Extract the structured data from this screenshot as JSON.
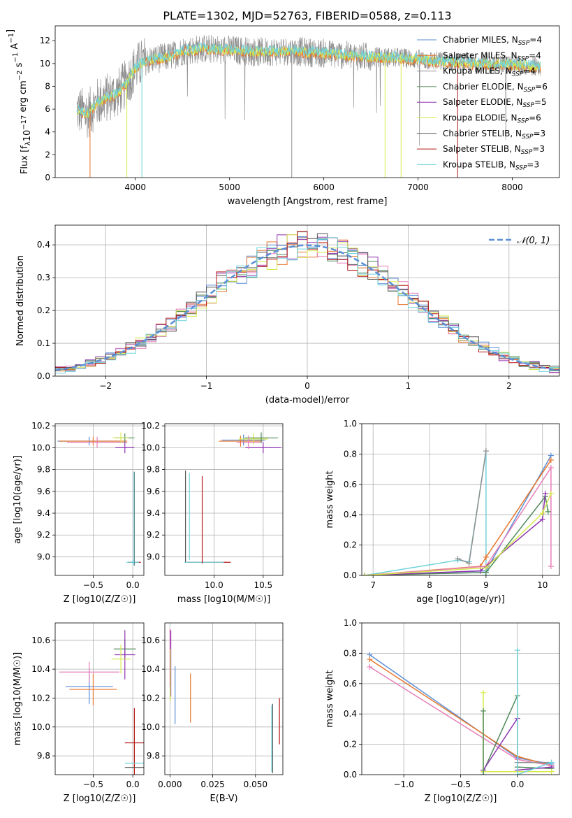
{
  "figure": {
    "title": "PLATE=1302, MJD=52763, FIBERID=0588, z=0.113"
  },
  "colors": {
    "Chabrier MILES": "#5b8fd6",
    "Salpeter MILES": "#e8762c",
    "Kroupa MILES": "#8f8f8f",
    "Chabrier ELODIE": "#4f8a5a",
    "Salpeter ELODIE": "#8e35b0",
    "Kroupa ELODIE": "#d6ea4a",
    "Chabrier STELIB": "#555555",
    "Salpeter STELIB": "#b51616",
    "Kroupa STELIB": "#6fd3db",
    "Kroupa MILES (hist)": "#e87eb8",
    "normal": "#5b8fd6"
  },
  "chart_data": [
    {
      "type": "line",
      "name": "spectrum",
      "xlabel": "wavelength [Angstrom, rest frame]",
      "ylabel": "Flux [f_λ 10^-17 erg cm^-2 s^-1 A^-1]",
      "xlim": [
        3150,
        8500
      ],
      "ylim": [
        0,
        13.3
      ],
      "xticks": [
        "4000",
        "5000",
        "6000",
        "7000",
        "8000"
      ],
      "yticks": [
        "0",
        "2",
        "4",
        "6",
        "8",
        "10",
        "12"
      ],
      "continuum": {
        "x": [
          3380,
          3500,
          3600,
          3700,
          3800,
          3900,
          4000,
          4100,
          4200,
          4300,
          4400,
          4500,
          4700,
          5000,
          5300,
          5600,
          6000,
          6400,
          6800,
          7200,
          7600,
          8000,
          8300
        ],
        "y": [
          5.9,
          5.6,
          6.6,
          7.0,
          7.3,
          8.2,
          9.6,
          10.2,
          10.4,
          10.5,
          10.7,
          11.1,
          11.3,
          11.2,
          11.0,
          11.1,
          10.9,
          10.6,
          10.5,
          10.2,
          10.0,
          9.9,
          9.7
        ]
      },
      "legend": {
        "position": "top-right",
        "entries": [
          {
            "label": "Chabrier MILES, N",
            "sub": "SSP",
            "tail": "=4"
          },
          {
            "label": "Salpeter MILES, N",
            "sub": "SSP",
            "tail": "=4"
          },
          {
            "label": "Kroupa MILES, N",
            "sub": "SSP",
            "tail": "=4"
          },
          {
            "label": "Chabrier ELODIE, N",
            "sub": "SSP",
            "tail": "=6"
          },
          {
            "label": "Salpeter ELODIE, N",
            "sub": "SSP",
            "tail": "=5"
          },
          {
            "label": "Kroupa ELODIE, N",
            "sub": "SSP",
            "tail": "=6"
          },
          {
            "label": "Chabrier STELIB, N",
            "sub": "SSP",
            "tail": "=3"
          },
          {
            "label": "Salpeter STELIB, N",
            "sub": "SSP",
            "tail": "=3"
          },
          {
            "label": "Kroupa STELIB, N",
            "sub": "SSP",
            "tail": "=3"
          }
        ],
        "colors": [
          "#5b8fd6",
          "#e8762c",
          "#8f8f8f",
          "#4f8a5a",
          "#8e35b0",
          "#d6ea4a",
          "#555555",
          "#b51616",
          "#6fd3db"
        ]
      }
    },
    {
      "type": "line",
      "name": "residual-histogram",
      "xlabel": "(data-model)/error",
      "ylabel": "Normed distribution",
      "xlim": [
        -2.5,
        2.5
      ],
      "ylim": [
        0,
        0.46
      ],
      "xticks": [
        "−2",
        "−1",
        "0",
        "1",
        "2"
      ],
      "yticks": [
        "0.0",
        "0.1",
        "0.2",
        "0.3",
        "0.4"
      ],
      "legend": {
        "position": "top-right",
        "label": "𝒩(0, 1)"
      },
      "series_colors": [
        "#5b8fd6",
        "#e8762c",
        "#e87eb8",
        "#4f8a5a",
        "#8e35b0",
        "#d6ea4a",
        "#555555",
        "#b51616",
        "#6fd3db"
      ]
    },
    {
      "type": "scatter",
      "name": "age-vs-Z",
      "xlabel": "Z [log10(Z/Z☉)]",
      "ylabel": "age [log10(age/yr)]",
      "xlim": [
        -0.98,
        0.14
      ],
      "ylim": [
        8.83,
        10.22
      ],
      "xticks": [
        "−0.5",
        "0.0"
      ],
      "yticks": [
        "9.0",
        "9.2",
        "9.4",
        "9.6",
        "9.8",
        "10.0",
        "10.2"
      ],
      "points": [
        {
          "x": -0.55,
          "y": 10.06,
          "xerr": 0.4,
          "yerr": 0.04,
          "c": "#5b8fd6"
        },
        {
          "x": -0.5,
          "y": 10.06,
          "xerr": 0.43,
          "yerr": 0.04,
          "c": "#e8762c"
        },
        {
          "x": -0.45,
          "y": 10.05,
          "xerr": 0.38,
          "yerr": 0.05,
          "c": "#e87eb8"
        },
        {
          "x": -0.1,
          "y": 10.09,
          "xerr": 0.12,
          "yerr": 0.04,
          "c": "#4f8a5a"
        },
        {
          "x": -0.1,
          "y": 10.0,
          "xerr": 0.12,
          "yerr": 0.05,
          "c": "#8e35b0"
        },
        {
          "x": -0.15,
          "y": 10.09,
          "xerr": 0.1,
          "yerr": 0.05,
          "c": "#d6ea4a"
        },
        {
          "x": 0.02,
          "y": 8.95,
          "xerr": 0.08,
          "yerr": 0.02,
          "c": "#555555"
        },
        {
          "x": 0.02,
          "y": 8.95,
          "xerr": 0.08,
          "yerr": 0.02,
          "c": "#b51616"
        },
        {
          "x": 0.0,
          "y": 8.95,
          "xerr": 0.08,
          "yerr": 0.02,
          "c": "#6fd3db"
        },
        {
          "x": 0.02,
          "y": 9.35,
          "xerr": 0.0,
          "yerr": 0.43,
          "c": "#555555"
        },
        {
          "x": 0.015,
          "y": 9.35,
          "xerr": 0.0,
          "yerr": 0.43,
          "c": "#6fd3db"
        }
      ]
    },
    {
      "type": "scatter",
      "name": "age-vs-mass",
      "xlabel": "mass [log10(M/M☉)]",
      "ylabel": "",
      "xlim": [
        9.5,
        10.7
      ],
      "ylim": [
        8.83,
        10.22
      ],
      "xticks": [
        "10.0",
        "10.5"
      ],
      "yticks": [
        "9.0",
        "9.2",
        "9.4",
        "9.6",
        "9.8",
        "10.0",
        "10.2"
      ],
      "points": [
        {
          "x": 10.3,
          "y": 10.07,
          "xerr": 0.22,
          "yerr": 0.05,
          "c": "#5b8fd6"
        },
        {
          "x": 10.27,
          "y": 10.06,
          "xerr": 0.22,
          "yerr": 0.05,
          "c": "#e8762c"
        },
        {
          "x": 10.4,
          "y": 10.08,
          "xerr": 0.15,
          "yerr": 0.05,
          "c": "#d6ea4a"
        },
        {
          "x": 10.48,
          "y": 10.09,
          "xerr": 0.17,
          "yerr": 0.05,
          "c": "#4f8a5a"
        },
        {
          "x": 10.5,
          "y": 10.0,
          "xerr": 0.18,
          "yerr": 0.05,
          "c": "#8e35b0"
        },
        {
          "x": 10.35,
          "y": 10.05,
          "xerr": 0.12,
          "yerr": 0.06,
          "c": "#e87eb8"
        },
        {
          "x": 9.95,
          "y": 8.95,
          "xerr": 0.22,
          "yerr": 0.0,
          "c": "#b51616"
        },
        {
          "x": 9.9,
          "y": 8.95,
          "xerr": 0.2,
          "yerr": 0.0,
          "c": "#6fd3db"
        },
        {
          "x": 9.71,
          "y": 9.37,
          "xerr": 0.0,
          "yerr": 0.42,
          "c": "#555555"
        },
        {
          "x": 9.75,
          "y": 9.37,
          "xerr": 0.0,
          "yerr": 0.4,
          "c": "#6fd3db"
        },
        {
          "x": 9.88,
          "y": 9.34,
          "xerr": 0.0,
          "yerr": 0.4,
          "c": "#b51616"
        }
      ]
    },
    {
      "type": "line",
      "name": "mass-weight-vs-age",
      "xlabel": "age [log10(age/yr)]",
      "ylabel": "mass weight",
      "xlim": [
        6.8,
        10.3
      ],
      "ylim": [
        0,
        1.0
      ],
      "xticks": [
        "7",
        "8",
        "9",
        "10"
      ],
      "yticks": [
        "0.0",
        "0.2",
        "0.4",
        "0.6",
        "0.8",
        "1.0"
      ],
      "series": [
        {
          "c": "#6fd3db",
          "x": [
            6.85,
            8.5,
            8.7,
            9.0,
            9.0
          ],
          "y": [
            0.0,
            0.1,
            0.09,
            0.82,
            0.0
          ]
        },
        {
          "c": "#8f8f8f",
          "x": [
            8.5,
            8.7,
            9.0
          ],
          "y": [
            0.11,
            0.08,
            0.82
          ]
        },
        {
          "c": "#5b8fd6",
          "x": [
            6.85,
            9.0,
            10.15
          ],
          "y": [
            0.0,
            0.03,
            0.79
          ]
        },
        {
          "c": "#e8762c",
          "x": [
            6.85,
            8.9,
            9.0,
            10.15
          ],
          "y": [
            0.0,
            0.06,
            0.12,
            0.76
          ]
        },
        {
          "c": "#e87eb8",
          "x": [
            6.85,
            9.0,
            10.15,
            10.15
          ],
          "y": [
            0.0,
            0.06,
            0.71,
            0.06
          ]
        },
        {
          "c": "#4f8a5a",
          "x": [
            6.85,
            9.0,
            10.05,
            10.1
          ],
          "y": [
            0.0,
            0.02,
            0.52,
            0.42
          ]
        },
        {
          "c": "#8e35b0",
          "x": [
            6.85,
            8.9,
            10.0,
            10.05
          ],
          "y": [
            0.0,
            0.03,
            0.37,
            0.54
          ]
        },
        {
          "c": "#d6ea4a",
          "x": [
            6.85,
            9.0,
            10.0,
            10.15
          ],
          "y": [
            0.0,
            0.05,
            0.41,
            0.54
          ]
        }
      ]
    },
    {
      "type": "scatter",
      "name": "mass-vs-Z",
      "xlabel": "Z [log10(Z/Z☉)]",
      "ylabel": "mass [log10(M/M☉)]",
      "xlim": [
        -0.98,
        0.14
      ],
      "ylim": [
        9.67,
        10.72
      ],
      "xticks": [
        "−0.5",
        "0.0"
      ],
      "yticks": [
        "9.8",
        "10.0",
        "10.2",
        "10.4",
        "10.6"
      ],
      "points": [
        {
          "x": -0.55,
          "y": 10.28,
          "xerr": 0.3,
          "yerr": 0.12,
          "c": "#5b8fd6"
        },
        {
          "x": -0.5,
          "y": 10.26,
          "xerr": 0.3,
          "yerr": 0.11,
          "c": "#e8762c"
        },
        {
          "x": -0.55,
          "y": 10.38,
          "xerr": 0.38,
          "yerr": 0.07,
          "c": "#e87eb8"
        },
        {
          "x": -0.1,
          "y": 10.54,
          "xerr": 0.14,
          "yerr": 0.07,
          "c": "#4f8a5a"
        },
        {
          "x": -0.1,
          "y": 10.5,
          "xerr": 0.13,
          "yerr": 0.17,
          "c": "#8e35b0"
        },
        {
          "x": -0.15,
          "y": 10.47,
          "xerr": 0.12,
          "yerr": 0.1,
          "c": "#d6ea4a"
        },
        {
          "x": 0.02,
          "y": 9.89,
          "xerr": 0.12,
          "yerr": 0.24,
          "c": "#b51616"
        },
        {
          "x": 0.02,
          "y": 9.75,
          "xerr": 0.12,
          "yerr": 0.0,
          "c": "#6fd3db"
        },
        {
          "x": 0.02,
          "y": 9.72,
          "xerr": 0.12,
          "yerr": 0.0,
          "c": "#555555"
        }
      ]
    },
    {
      "type": "scatter",
      "name": "mass-vs-EBV",
      "xlabel": "E(B-V)",
      "ylabel": "",
      "xlim": [
        -0.003,
        0.066
      ],
      "ylim": [
        9.67,
        10.72
      ],
      "xticks": [
        "0.000",
        "0.025",
        "0.050"
      ],
      "yticks": [
        "9.8",
        "10.0",
        "10.2",
        "10.4",
        "10.6"
      ],
      "points": [
        {
          "x": 0.0,
          "y": 10.48,
          "yerr": 0.2,
          "c": "#e87eb8"
        },
        {
          "x": 0.0005,
          "y": 10.44,
          "yerr": 0.23,
          "c": "#8e35b0"
        },
        {
          "x": 0.0002,
          "y": 10.36,
          "yerr": 0.18,
          "c": "#d6ea4a"
        },
        {
          "x": 0.003,
          "y": 10.22,
          "yerr": 0.2,
          "c": "#5b8fd6"
        },
        {
          "x": 0.012,
          "y": 10.2,
          "yerr": 0.17,
          "c": "#e8762c"
        },
        {
          "x": 0.06,
          "y": 9.92,
          "yerr": 0.24,
          "c": "#555555"
        },
        {
          "x": 0.0595,
          "y": 9.92,
          "yerr": 0.23,
          "c": "#6fd3db"
        },
        {
          "x": 0.064,
          "y": 10.04,
          "yerr": 0.16,
          "c": "#b51616"
        }
      ]
    },
    {
      "type": "line",
      "name": "mass-weight-vs-Z",
      "xlabel": "Z [log10(Z/Z☉)]",
      "ylabel": "mass weight",
      "xlim": [
        -1.37,
        0.37
      ],
      "ylim": [
        0,
        1.0
      ],
      "xticks": [
        "−1.0",
        "−0.5",
        "0.0"
      ],
      "yticks": [
        "0.0",
        "0.2",
        "0.4",
        "0.6",
        "0.8",
        "1.0"
      ],
      "series": [
        {
          "c": "#5b8fd6",
          "x": [
            -1.3,
            0.0,
            0.3
          ],
          "y": [
            0.79,
            0.11,
            0.07
          ]
        },
        {
          "c": "#e8762c",
          "x": [
            -1.3,
            0.0,
            0.3
          ],
          "y": [
            0.76,
            0.12,
            0.06
          ]
        },
        {
          "c": "#e87eb8",
          "x": [
            -1.3,
            0.0,
            0.3
          ],
          "y": [
            0.71,
            0.1,
            0.06
          ]
        },
        {
          "c": "#4f8a5a",
          "x": [
            -0.3,
            0.0,
            0.0,
            0.3
          ],
          "y": [
            0.02,
            0.52,
            0.05,
            0.04
          ]
        },
        {
          "c": "#8e35b0",
          "x": [
            -0.3,
            0.0,
            0.0,
            0.3
          ],
          "y": [
            0.03,
            0.37,
            0.03,
            0.05
          ]
        },
        {
          "c": "#d6ea4a",
          "x": [
            -0.3,
            -0.3,
            0.0,
            0.3
          ],
          "y": [
            0.54,
            0.02,
            0.02,
            0.02
          ]
        },
        {
          "c": "#8f8f8f",
          "x": [
            0.0,
            0.0,
            0.3
          ],
          "y": [
            0.82,
            0.08,
            0.08
          ]
        },
        {
          "c": "#6fd3db",
          "x": [
            0.0,
            0.0,
            0.3
          ],
          "y": [
            0.82,
            0.0,
            0.08
          ]
        },
        {
          "c": "#4f8a5a",
          "x": [
            -0.3,
            -0.3
          ],
          "y": [
            0.42,
            0.0
          ]
        }
      ]
    }
  ]
}
